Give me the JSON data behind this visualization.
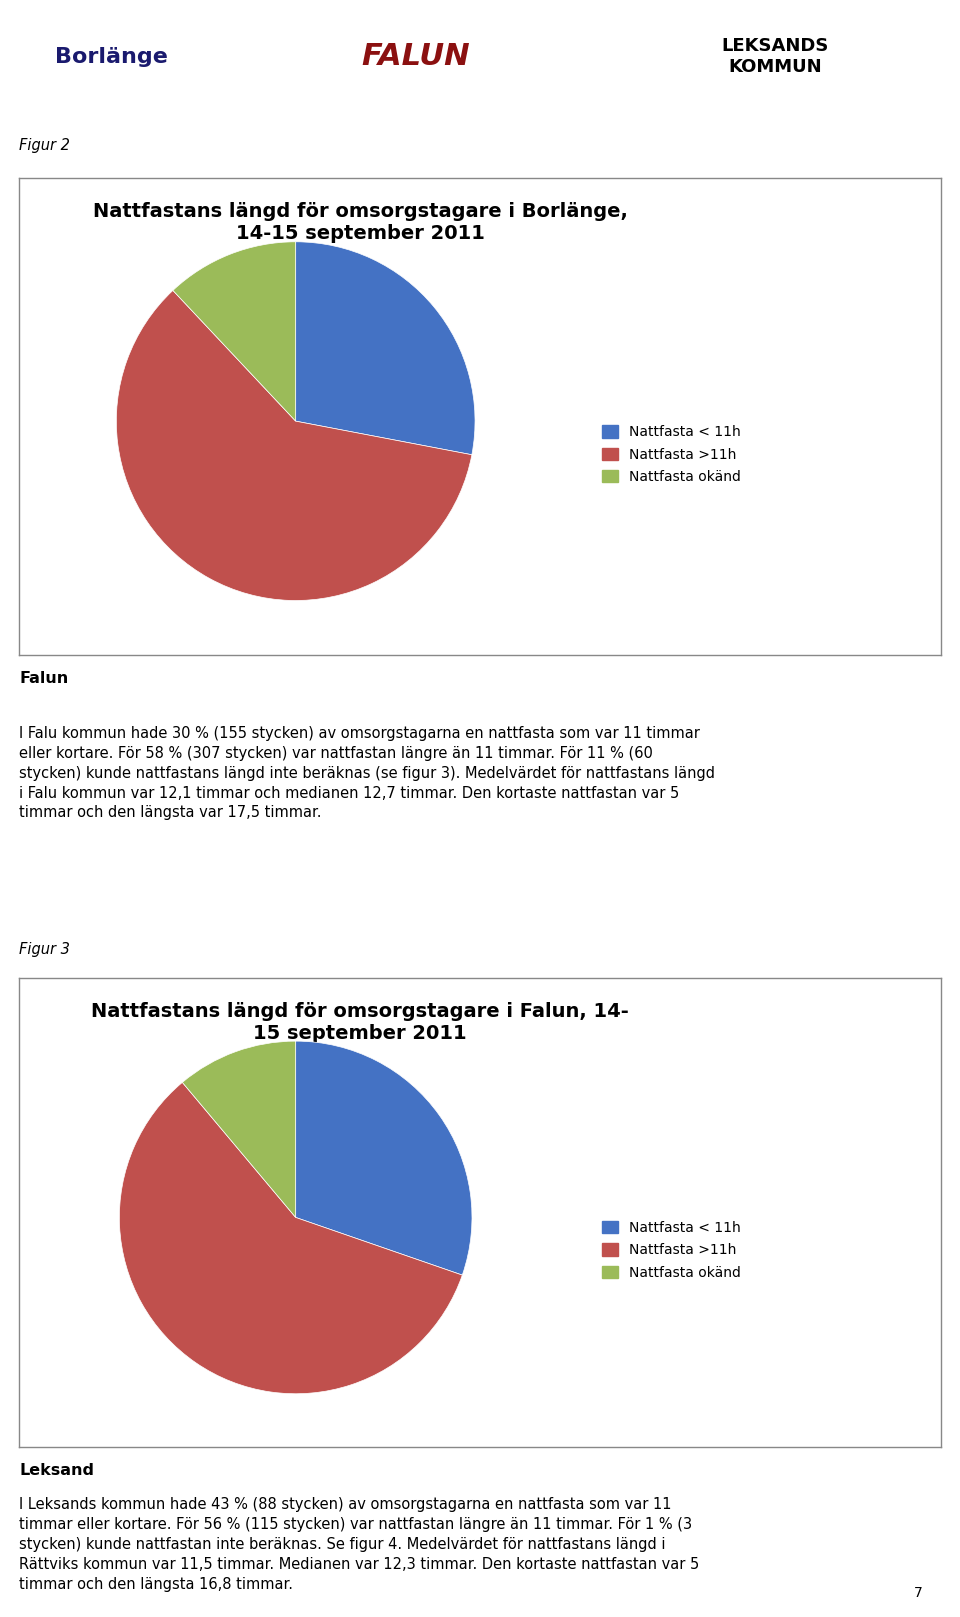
{
  "fig2_title": "Nattfastans längd för omsorgstagare i Borlänge,\n14-15 september 2011",
  "fig2_values": [
    28,
    60,
    12
  ],
  "fig2_labels": [
    "28%",
    "60%",
    "12%"
  ],
  "fig2_colors": [
    "#4472C4",
    "#C0504D",
    "#9BBB59"
  ],
  "fig2_startangle": 90,
  "fig3_title": "Nattfastans längd för omsorgstagare i Falun, 14-\n15 september 2011",
  "fig3_values": [
    30,
    58,
    11
  ],
  "fig3_labels": [
    "30%",
    "58%",
    "11%"
  ],
  "fig3_colors": [
    "#4472C4",
    "#C0504D",
    "#9BBB59"
  ],
  "fig3_startangle": 90,
  "legend_labels": [
    "Nattfasta < 11h",
    "Nattfasta >11h",
    "Nattfasta okänd"
  ],
  "legend_colors": [
    "#4472C4",
    "#C0504D",
    "#9BBB59"
  ],
  "figur2_label": "Figur 2",
  "figur3_label": "Figur 3",
  "falun_heading": "Falun",
  "falun_text_lines": [
    "I Falu kommun hade 30 % (155 stycken) av omsorgstagarna en nattfasta som var 11 timmar",
    "eller kortare. För 58 % (307 stycken) var nattfastan längre än 11 timmar. För 11 % (60",
    "stycken) kunde nattfastans längd inte beräknas (se figur 3). Medelvärdet för nattfastans längd",
    "i Falu kommun var 12,1 timmar och medianen 12,7 timmar. Den kortaste nattfastan var 5",
    "timmar och den längsta var 17,5 timmar."
  ],
  "leksand_heading": "Leksand",
  "leksand_text_lines": [
    "I Leksands kommun hade 43 % (88 stycken) av omsorgstagarna en nattfasta som var 11",
    "timmar eller kortare. För 56 % (115 stycken) var nattfastan längre än 11 timmar. För 1 % (3",
    "stycken) kunde nattfastan inte beräknas. Se figur 4. Medelvärdet för nattfastans längd i",
    "Rättviks kommun var 11,5 timmar. Medianen var 12,3 timmar. Den kortaste nattfastan var 5",
    "timmar och den längsta 16,8 timmar."
  ],
  "page_number": "7",
  "bg_color": "#FFFFFF",
  "box_border_color": "#888888",
  "text_color": "#000000",
  "font_size_title": 14,
  "font_size_text": 10.5,
  "font_size_heading": 11.5,
  "font_size_label": 10.5,
  "font_size_pct": 11,
  "font_size_legend": 10
}
